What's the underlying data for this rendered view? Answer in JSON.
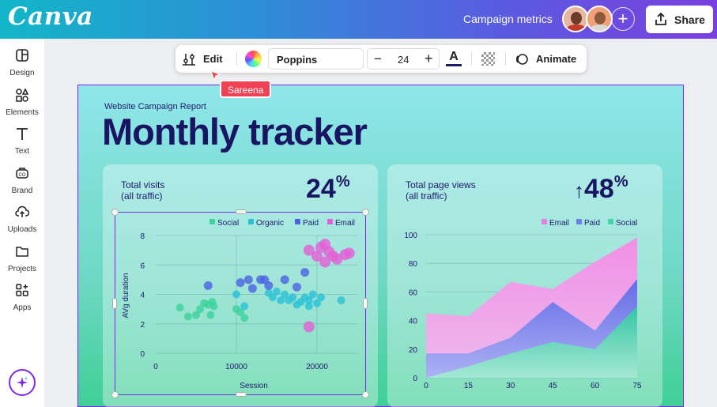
{
  "header": {
    "logo": "Canva",
    "doc_title": "Campaign metrics",
    "share_label": "Share",
    "add_label": "+"
  },
  "sidebar": {
    "items": [
      {
        "label": "Design",
        "icon": "layout-icon"
      },
      {
        "label": "Elements",
        "icon": "shapes-icon"
      },
      {
        "label": "Text",
        "icon": "text-t-icon"
      },
      {
        "label": "Brand",
        "icon": "brand-icon"
      },
      {
        "label": "Uploads",
        "icon": "cloud-upload-icon"
      },
      {
        "label": "Projects",
        "icon": "folder-icon"
      },
      {
        "label": "Apps",
        "icon": "apps-grid-icon"
      }
    ],
    "magic_icon": "sparkle-icon"
  },
  "toolbar": {
    "edit_label": "Edit",
    "font": "Poppins",
    "font_size": "24",
    "minus": "−",
    "plus": "+",
    "text_color_glyph": "A",
    "text_color": "#1e1a6b",
    "animate_label": "Animate"
  },
  "collaborator": {
    "name": "Sareena",
    "color": "#f04155"
  },
  "page": {
    "subtitle": "Website Campaign Report",
    "title": "Monthly tracker"
  },
  "card1": {
    "label_line1": "Total visits",
    "label_line2": "(all traffic)",
    "big_value": "24",
    "big_unit": "%"
  },
  "card2": {
    "label_line1": "Total page views",
    "label_line2": "(all traffic)",
    "big_value": "48",
    "big_unit": "%",
    "arrow": "↑"
  },
  "chart_data": [
    {
      "type": "scatter",
      "xlabel": "Session",
      "ylabel": "AVg duration",
      "xlim": [
        0,
        25000
      ],
      "ylim": [
        0,
        8
      ],
      "xticks": [
        "0",
        "10000",
        "20000"
      ],
      "xtick_values": [
        0,
        10000,
        20000
      ],
      "yticks": [
        "0",
        "2",
        "4",
        "6",
        "8"
      ],
      "ytick_values": [
        0,
        2,
        4,
        6,
        8
      ],
      "legend_position": "top-right",
      "grid": true,
      "series": [
        {
          "name": "Social",
          "color": "#3cd29c",
          "points": [
            [
              3000,
              3.1
            ],
            [
              4000,
              2.5
            ],
            [
              5000,
              2.6
            ],
            [
              5500,
              3.0
            ],
            [
              6000,
              3.4
            ],
            [
              6500,
              3.3
            ],
            [
              7000,
              3.5
            ],
            [
              7200,
              3.2
            ],
            [
              6800,
              2.6
            ],
            [
              10500,
              2.8
            ],
            [
              11000,
              2.4
            ],
            [
              10000,
              3.0
            ]
          ]
        },
        {
          "name": "Organic",
          "color": "#2bc0d8",
          "points": [
            [
              10000,
              4.0
            ],
            [
              11000,
              3.2
            ],
            [
              14500,
              3.8
            ],
            [
              15000,
              4.2
            ],
            [
              15500,
              3.6
            ],
            [
              16000,
              4.0
            ],
            [
              16500,
              3.6
            ],
            [
              17000,
              3.8
            ],
            [
              18000,
              3.5
            ],
            [
              18500,
              3.8
            ],
            [
              19000,
              3.6
            ],
            [
              19500,
              4.0
            ],
            [
              20000,
              3.4
            ],
            [
              20500,
              3.8
            ],
            [
              23000,
              3.6
            ],
            [
              17500,
              3.3
            ],
            [
              14000,
              4.1
            ],
            [
              19000,
              3.2
            ]
          ]
        },
        {
          "name": "Paid",
          "color": "#4a63e2",
          "points": [
            [
              6500,
              4.6
            ],
            [
              10500,
              4.8
            ],
            [
              11500,
              5.0
            ],
            [
              13000,
              5.0
            ],
            [
              13500,
              5.0
            ],
            [
              14000,
              4.6
            ],
            [
              16000,
              5.0
            ],
            [
              18500,
              5.5
            ],
            [
              12000,
              4.4
            ],
            [
              17500,
              4.5
            ]
          ]
        },
        {
          "name": "Email",
          "color": "#e35fd7",
          "points": [
            [
              19000,
              7.0
            ],
            [
              20500,
              7.2
            ],
            [
              21000,
              7.4
            ],
            [
              21500,
              6.9
            ],
            [
              22000,
              6.6
            ],
            [
              22500,
              6.4
            ],
            [
              23500,
              6.7
            ],
            [
              24000,
              6.8
            ],
            [
              21000,
              6.2
            ],
            [
              20000,
              6.6
            ],
            [
              19000,
              1.8
            ]
          ]
        }
      ]
    },
    {
      "type": "area",
      "x": [
        0,
        15,
        30,
        45,
        60,
        75
      ],
      "xticks": [
        "0",
        "15",
        "30",
        "45",
        "60",
        "75"
      ],
      "xlim": [
        0,
        75
      ],
      "ylim": [
        0,
        100
      ],
      "yticks": [
        "0",
        "20",
        "40",
        "60",
        "80",
        "100"
      ],
      "ytick_values": [
        0,
        20,
        40,
        60,
        80,
        100
      ],
      "legend_position": "top-right",
      "grid": true,
      "series": [
        {
          "name": "Email",
          "color": "#e87ee0",
          "values": [
            45,
            43,
            67,
            62,
            81,
            98
          ]
        },
        {
          "name": "Paid",
          "color": "#6d7fe8",
          "values": [
            17,
            17,
            28,
            53,
            33,
            69
          ]
        },
        {
          "name": "Social",
          "color": "#44d2a8",
          "values": [
            0,
            8,
            17,
            25,
            20,
            50
          ]
        }
      ]
    }
  ]
}
